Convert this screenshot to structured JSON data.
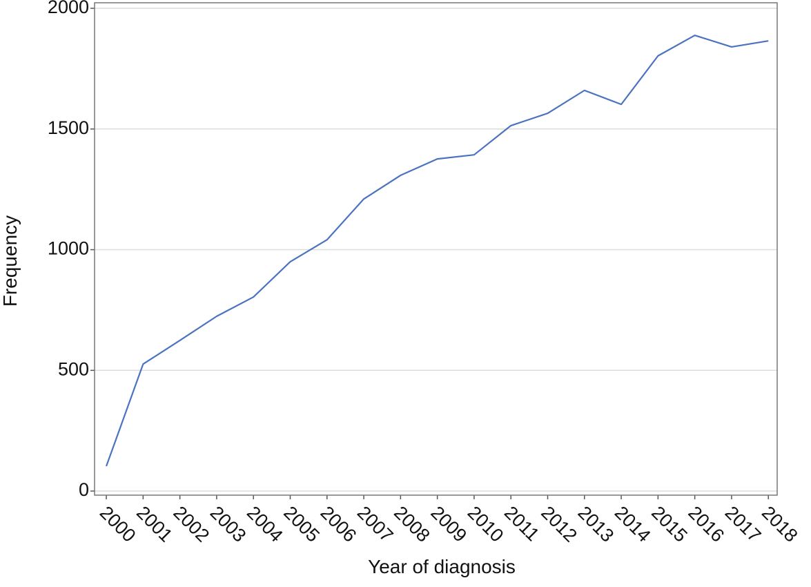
{
  "chart_data": {
    "type": "line",
    "x_label": "Year of diagnosis",
    "y_label": "Frequency",
    "x": [
      2000,
      2001,
      2002,
      2003,
      2004,
      2005,
      2006,
      2007,
      2008,
      2009,
      2010,
      2011,
      2012,
      2013,
      2014,
      2015,
      2016,
      2017,
      2018
    ],
    "series": [
      {
        "color": "#4a72c0",
        "values": [
          103,
          526,
          624,
          724,
          804,
          950,
          1041,
          1210,
          1308,
          1376,
          1393,
          1514,
          1565,
          1660,
          1602,
          1803,
          1888,
          1840,
          1865
        ]
      }
    ],
    "xlim": [
      1999.68,
      2018.24
    ],
    "xticks": [
      2000,
      2001,
      2002,
      2003,
      2004,
      2005,
      2006,
      2007,
      2008,
      2009,
      2010,
      2011,
      2012,
      2013,
      2014,
      2015,
      2016,
      2017,
      2018
    ],
    "ylim": [
      -17,
      2023
    ],
    "yticks": [
      0,
      500,
      1000,
      1500,
      2000
    ],
    "grid": true
  }
}
